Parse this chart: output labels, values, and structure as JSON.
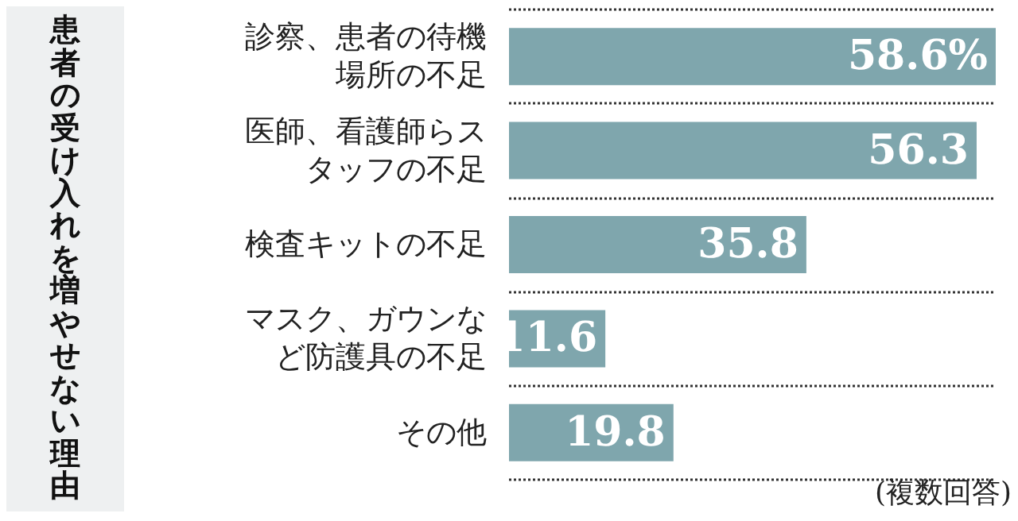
{
  "chart_data": {
    "type": "bar",
    "orientation": "horizontal",
    "title": "患者の受け入れを増やせない理由",
    "categories": [
      "診察、患者の待機場所の不足",
      "医師、看護師らスタッフの不足",
      "検査キットの不足",
      "マスク、ガウンなど防護具の不足",
      "その他"
    ],
    "values": [
      58.6,
      56.3,
      35.8,
      11.6,
      19.8
    ],
    "value_labels": [
      "58.6%",
      "56.3",
      "35.8",
      "11.6",
      "19.8"
    ],
    "color": "#7fa6ad",
    "grid": "y",
    "annotations": [
      "(複数回答)"
    ]
  }
}
